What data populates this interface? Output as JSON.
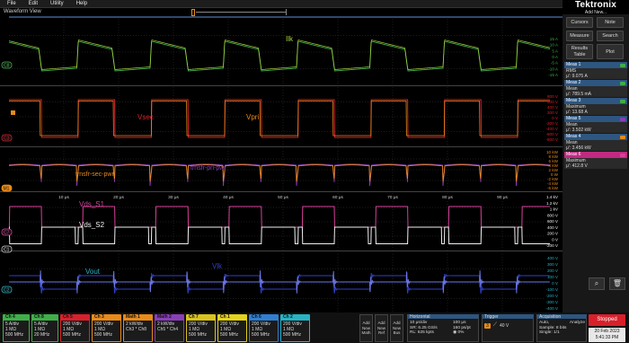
{
  "menu": [
    "File",
    "Edit",
    "Utility",
    "Help"
  ],
  "waveform_view": {
    "title": "Waveform View"
  },
  "brand": {
    "name": "Tektronix",
    "add_new": "Add New..."
  },
  "sidebar": {
    "cursors": "Cursors",
    "note": "Note",
    "measure": "Measure",
    "search": "Search",
    "results_table_1": "Results",
    "results_table_2": "Table",
    "plot": "Plot"
  },
  "measurements": [
    {
      "title": "Meas 1",
      "type": "RMS",
      "value": "μ': 9.075 A",
      "color": "#3fae49"
    },
    {
      "title": "Meas 2",
      "type": "Mean",
      "value": "μ': 789.5 mA",
      "color": "#3fae49"
    },
    {
      "title": "Meas 3",
      "type": "Maximum",
      "value": "μ': 13.68 A",
      "color": "#3fae49"
    },
    {
      "title": "Meas 5",
      "type": "Mean",
      "value": "μ': 3.502 kW",
      "color": "#8a3fb8"
    },
    {
      "title": "Meas 4",
      "type": "Mean",
      "value": "μ': 3.456 kW",
      "color": "#e88a1a"
    },
    {
      "title": "Meas 6",
      "type": "Maximum",
      "value": "μ': 412.8 V",
      "color": "#d8409a"
    }
  ],
  "channel_labels": {
    "c8": "C8",
    "c3": "C3",
    "m1": "M1",
    "c7": "C7",
    "c1": "C1",
    "c2": "C2"
  },
  "wave_labels": {
    "ilk": "Ilk",
    "vsec": "Vsec",
    "vpri": "Vpri",
    "sec_pwr": "trnsfr-sec-pwr",
    "pri_pwr": "trnsfr-pri-pwr",
    "vds_s1": "Vds_S1",
    "vds_s2": "Vds_S2",
    "vout": "Vout",
    "vlk": "Vlk"
  },
  "scales": {
    "ilk": [
      "15 A",
      "10 A",
      "5 A",
      "0 A",
      "-5 A",
      "-10 A",
      "-15 A"
    ],
    "vsec": [
      "800 V",
      "600 V",
      "400 V",
      "200 V",
      "0 V",
      "-200 V",
      "-400 V",
      "-600 V",
      "-800 V"
    ],
    "pwr": [
      "10 kW",
      "8 kW",
      "6 kW",
      "4 kW",
      "2 kW",
      "0 W",
      "-2 kW",
      "-4 kW",
      "-6 kW"
    ],
    "vds": [
      "1.4 kV",
      "1.2 kV",
      "1 kV",
      "800 V",
      "600 V",
      "400 V",
      "200 V",
      "0 V",
      "-200 V"
    ],
    "vout": [
      "400 V",
      "300 V",
      "200 V",
      "100 V",
      "0 V",
      "-100 V",
      "-200 V",
      "-300 V",
      "-400 V"
    ]
  },
  "time_labels": [
    "10 μs",
    "20 μs",
    "30 μs",
    "40 μs",
    "50 μs",
    "60 μs",
    "70 μs",
    "80 μs",
    "90 μs"
  ],
  "channels": [
    {
      "title": "Ch 4",
      "l1": "5 A/div",
      "l2": "1 MΩ",
      "l3": "500 MHz",
      "color": "#3fae49"
    },
    {
      "title": "Ch 8",
      "l1": "5 A/div",
      "l2": "1 MΩ",
      "l3": "20 MHz",
      "color": "#3fae49"
    },
    {
      "title": "Ch 5",
      "l1": "200 V/div",
      "l2": "1 MΩ",
      "l3": "500 MHz",
      "color": "#d8202b"
    },
    {
      "title": "Ch 3",
      "l1": "200 V/div",
      "l2": "1 MΩ",
      "l3": "500 MHz",
      "color": "#e88a1a"
    },
    {
      "title": "Math 1",
      "l1": "2 kW/div",
      "l2": "Ch3 * Ch8",
      "l3": "",
      "color": "#e88a1a"
    },
    {
      "title": "Math 2",
      "l1": "2 kW/div",
      "l2": "Ch5 * Ch4",
      "l3": "",
      "color": "#8a3fb8"
    },
    {
      "title": "Ch 7",
      "l1": "200 V/div",
      "l2": "1 MΩ",
      "l3": "500 MHz",
      "color": "#d9c31f"
    },
    {
      "title": "Ch 1",
      "l1": "200 V/div",
      "l2": "1 MΩ",
      "l3": "500 MHz",
      "color": "#e3d21c"
    },
    {
      "title": "Ch 6",
      "l1": "200 V/div",
      "l2": "1 MΩ",
      "l3": "500 MHz",
      "color": "#2f7fd0"
    },
    {
      "title": "Ch 2",
      "l1": "200 V/div",
      "l2": "1 MΩ",
      "l3": "500 MHz",
      "color": "#27b3c4"
    }
  ],
  "add_buttons": [
    {
      "l1": "Add",
      "l2": "New",
      "l3": "Math"
    },
    {
      "l1": "Add",
      "l2": "New",
      "l3": "Ref"
    },
    {
      "l1": "Add",
      "l2": "New",
      "l3": "Bus"
    }
  ],
  "horizontal": {
    "title": "Horizontal",
    "l1": "10 μs/div",
    "l1b": "100 μs",
    "l2": "SR: 6.25 GS/s",
    "l2b": "160 ps/pt",
    "l3": "RL: 625 kpts",
    "l3b": "◉ 0%"
  },
  "trigger": {
    "title": "Trigger",
    "ch": "3",
    "level": "40 V"
  },
  "acquisition": {
    "title": "Acquisition",
    "l1": "Auto,",
    "l1b": "Analyze",
    "l2": "Sample: 8 bits",
    "l3": "Single: 1/1"
  },
  "status": {
    "stopped": "Stopped",
    "date": "20 Feb 2023",
    "time": "5:41:33 PM"
  },
  "colors": {
    "green": "#3fae49",
    "green2": "#a8d23c",
    "red": "#d8202b",
    "orange": "#e88a1a",
    "purple": "#8a3fb8",
    "magenta": "#d8409a",
    "white": "#f0f0f0",
    "blue": "#2f40c8",
    "cyan": "#27b3c4"
  }
}
